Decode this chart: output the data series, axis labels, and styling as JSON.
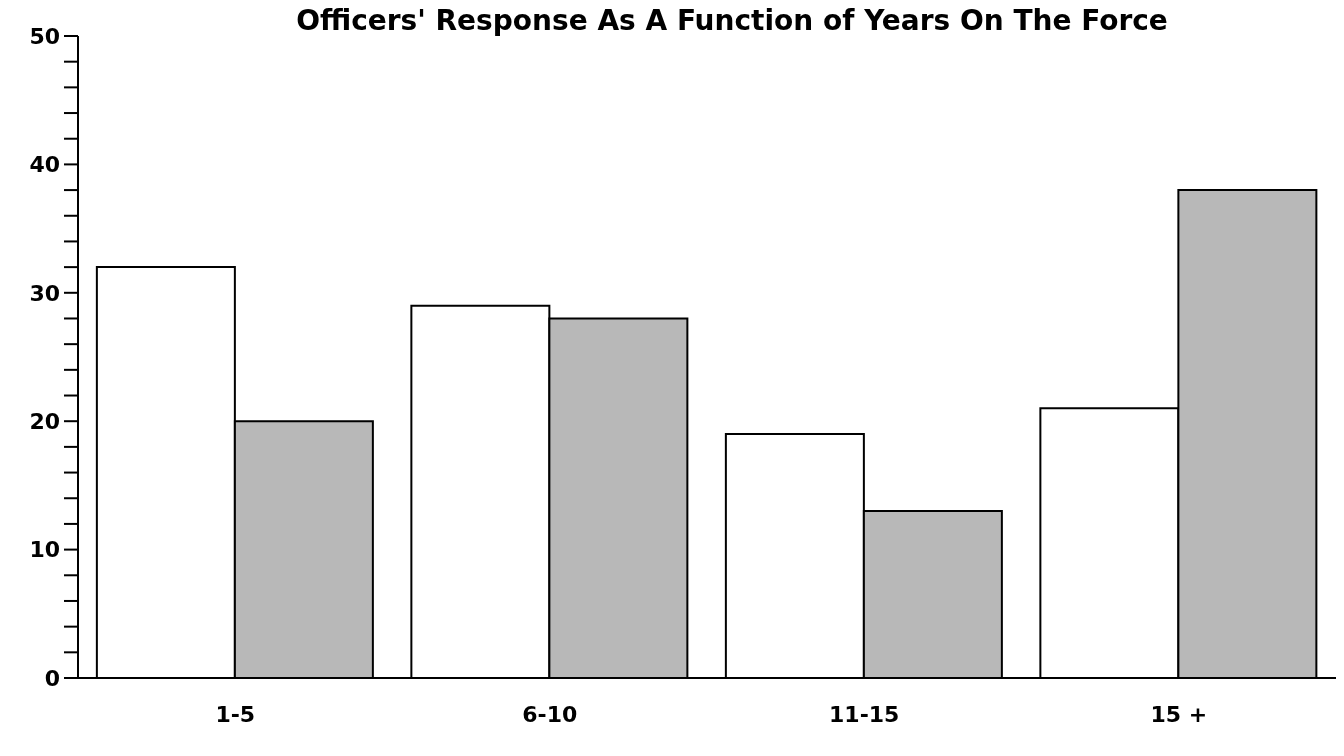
{
  "chart_data": {
    "type": "bar",
    "title": "Officers' Response As A Function of Years On The Force",
    "categories": [
      "1-5",
      "6-10",
      "11-15",
      "15 +"
    ],
    "series": [
      {
        "color": "#ffffff",
        "values": [
          32,
          29,
          19,
          21
        ]
      },
      {
        "color": "#b8b8b8",
        "values": [
          20,
          28,
          13,
          38
        ]
      }
    ],
    "ylim": [
      0,
      50
    ],
    "yticks": [
      0,
      {
        "value": 2,
        "label": null
      },
      {
        "value": 4,
        "label": null
      },
      {
        "value": 6,
        "label": null
      },
      {
        "value": 8,
        "label": null
      },
      10,
      {
        "value": 12,
        "label": null
      },
      {
        "value": 14,
        "label": null
      },
      {
        "value": 16,
        "label": null
      },
      {
        "value": 18,
        "label": null
      },
      20,
      {
        "value": 22,
        "label": null
      },
      {
        "value": 24,
        "label": null
      },
      {
        "value": 26,
        "label": null
      },
      {
        "value": 28,
        "label": null
      },
      30,
      {
        "value": 32,
        "label": null
      },
      {
        "value": 34,
        "label": null
      },
      {
        "value": 36,
        "label": null
      },
      {
        "value": 38,
        "label": null
      },
      40,
      {
        "value": 42,
        "label": null
      },
      {
        "value": 44,
        "label": null
      },
      {
        "value": 46,
        "label": null
      },
      {
        "value": 48,
        "label": null
      },
      50
    ],
    "grid": false,
    "legend": false
  }
}
